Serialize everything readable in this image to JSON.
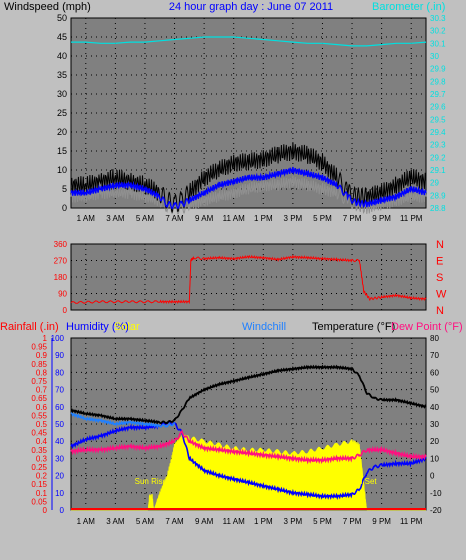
{
  "colors": {
    "background": "#c0c0c0",
    "plot_bg": "#808080",
    "grid": "#000000",
    "wind_gust": "#000000",
    "wind_avg": "#0000ff",
    "wind_min": "#909090",
    "barometer": "#00e0e0",
    "direction": "#ff0000",
    "rain": "#ff0000",
    "humidity": "#0000ff",
    "solar": "#ffff00",
    "windchill": "#2080ff",
    "temperature": "#000000",
    "dewpoint": "#ff1080",
    "sun_label": "#ffff00"
  },
  "chart_data": [
    {
      "type": "line",
      "title": "24 hour graph day : June 07 2011",
      "ylabel": "Windspeed (mph)",
      "y2label": "Barometer (.in)",
      "ylim": [
        0,
        50
      ],
      "y_ticks": [
        0,
        5,
        10,
        15,
        20,
        25,
        30,
        35,
        40,
        45,
        50
      ],
      "y2lim": [
        28.8,
        30.3
      ],
      "y2_ticks": [
        "28.8",
        "28.9",
        "29",
        "29.1",
        "29.2",
        "29.3",
        "29.4",
        "29.5",
        "29.6",
        "29.7",
        "29.8",
        "29.9",
        "30",
        "30.1",
        "30.2",
        "30.3"
      ],
      "x_ticks": [
        "1 AM",
        "3 AM",
        "5 AM",
        "7 AM",
        "9 AM",
        "11 AM",
        "1 PM",
        "3 PM",
        "5 PM",
        "7 PM",
        "9 PM",
        "11 PM"
      ],
      "x_tick_hours": [
        1,
        3,
        5,
        7,
        9,
        11,
        13,
        15,
        17,
        19,
        21,
        23
      ],
      "grid": true,
      "series": [
        {
          "name": "gust",
          "axis": "y",
          "x": [
            0,
            1,
            2,
            3,
            4,
            5,
            6,
            6.5,
            7,
            7.5,
            8,
            9,
            10,
            11,
            12,
            13,
            14,
            15,
            16,
            17,
            18,
            18.7,
            19.2,
            20,
            21,
            22,
            23,
            24
          ],
          "values": [
            6,
            6,
            7,
            8,
            7,
            6,
            4,
            2,
            1,
            2,
            4,
            8,
            10,
            12,
            12,
            13,
            14,
            15,
            14,
            12,
            8,
            4,
            3,
            3,
            4,
            6,
            8,
            7
          ]
        },
        {
          "name": "average",
          "axis": "y",
          "x": [
            0,
            1,
            2,
            3,
            4,
            5,
            6,
            6.5,
            7,
            7.5,
            8,
            9,
            10,
            11,
            12,
            13,
            14,
            15,
            16,
            17,
            18,
            18.7,
            19.2,
            20,
            21,
            22,
            23,
            24
          ],
          "values": [
            4,
            4,
            5,
            6,
            6,
            5,
            3,
            1,
            0.5,
            1,
            2,
            4,
            6,
            7,
            8,
            8,
            9,
            10,
            9,
            8,
            6,
            3,
            1.5,
            1,
            2,
            3,
            5,
            4
          ]
        },
        {
          "name": "minimum",
          "axis": "y",
          "x": [
            0,
            1,
            2,
            3,
            4,
            5,
            6,
            6.5,
            7,
            7.5,
            8,
            9,
            10,
            11,
            12,
            13,
            14,
            15,
            16,
            17,
            18,
            18.7,
            19.2,
            20,
            21,
            22,
            23,
            24
          ],
          "values": [
            3,
            3,
            4,
            4,
            4,
            3,
            2,
            0.5,
            0,
            0,
            1,
            2,
            3,
            4,
            5,
            6,
            6,
            7,
            6,
            5,
            4,
            2,
            1,
            0,
            1,
            2,
            3,
            3
          ]
        },
        {
          "name": "Barometer (.in)",
          "axis": "y2",
          "x": [
            0,
            1,
            2,
            3,
            4,
            5,
            6,
            7,
            8,
            9,
            10,
            11,
            12,
            13,
            14,
            15,
            16,
            17,
            18,
            19,
            20,
            21,
            22,
            23,
            24
          ],
          "values": [
            30.11,
            30.11,
            30.1,
            30.1,
            30.11,
            30.11,
            30.12,
            30.13,
            30.14,
            30.15,
            30.15,
            30.15,
            30.14,
            30.13,
            30.12,
            30.11,
            30.1,
            30.1,
            30.09,
            30.08,
            30.08,
            30.09,
            30.1,
            30.1,
            30.11
          ]
        }
      ]
    },
    {
      "type": "line",
      "title": "",
      "y_ticks": [
        0,
        90,
        180,
        270,
        360
      ],
      "ylim": [
        0,
        360
      ],
      "y2_ticks": [
        "N",
        "E",
        "S",
        "W",
        "N"
      ],
      "grid": true,
      "series": [
        {
          "name": "direction",
          "x": [
            0,
            2,
            4,
            6,
            7,
            8,
            8.1,
            8.3,
            9,
            10,
            11,
            12,
            13,
            14,
            15,
            16,
            17,
            18,
            19,
            19.5,
            19.8,
            20.2,
            21,
            22,
            23,
            24
          ],
          "values": [
            40,
            45,
            45,
            45,
            45,
            45,
            270,
            285,
            280,
            285,
            280,
            290,
            285,
            275,
            290,
            285,
            280,
            275,
            270,
            270,
            100,
            60,
            70,
            80,
            65,
            60
          ]
        }
      ]
    },
    {
      "type": "line",
      "title": "",
      "ylabel_labels": [
        "Rainfall (.in)",
        "Humidity (%)",
        "Solar",
        "Windchill",
        "Temperature (°F)",
        "Dew Point (°F)"
      ],
      "ylim": [
        0,
        1
      ],
      "y_ticks": [
        "0",
        "0.05",
        "0.1",
        "0.15",
        "0.2",
        "0.25",
        "0.3",
        "0.35",
        "0.4",
        "0.45",
        "0.5",
        "0.55",
        "0.6",
        "0.65",
        "0.7",
        "0.75",
        "0.8",
        "0.85",
        "0.9",
        "0.95",
        "1"
      ],
      "humidity_ticks": [
        0,
        10,
        20,
        30,
        40,
        50,
        60,
        70,
        80,
        90,
        100
      ],
      "y2lim": [
        -20,
        80
      ],
      "y2_ticks": [
        -20,
        -10,
        0,
        10,
        20,
        30,
        40,
        50,
        60,
        70,
        80
      ],
      "x_ticks": [
        "1 AM",
        "3 AM",
        "5 AM",
        "7 AM",
        "9 AM",
        "11 AM",
        "1 PM",
        "3 PM",
        "5 PM",
        "7 PM",
        "9 PM",
        "11 PM"
      ],
      "x_tick_hours": [
        1,
        3,
        5,
        7,
        9,
        11,
        13,
        15,
        17,
        19,
        21,
        23
      ],
      "annotations": [
        "Sun Rise",
        "Sun Set"
      ],
      "annotation_hours": [
        5.4,
        19.7
      ],
      "grid": true,
      "series": [
        {
          "name": "Temperature (°F)",
          "axis": "y2",
          "x": [
            0,
            1,
            2,
            3,
            4,
            5,
            6,
            6.5,
            7,
            7.5,
            8,
            9,
            10,
            11,
            12,
            13,
            14,
            15,
            16,
            17,
            18,
            19,
            19.5,
            20,
            20.5,
            21,
            22,
            23,
            24
          ],
          "values": [
            38,
            36,
            35,
            33,
            33,
            32,
            31,
            31,
            32,
            38,
            45,
            50,
            53,
            55,
            57,
            59,
            61,
            62,
            63,
            63,
            63,
            62,
            58,
            48,
            45,
            44,
            44,
            42,
            40
          ]
        },
        {
          "name": "Windchill",
          "axis": "y2",
          "x": [
            0,
            1,
            2,
            3,
            4,
            5,
            6,
            6.5,
            7
          ],
          "values": [
            36,
            33,
            32,
            30,
            31,
            30,
            29,
            29,
            30
          ]
        },
        {
          "name": "Dew Point (°F)",
          "axis": "y2",
          "x": [
            0,
            1,
            2,
            3,
            4,
            5,
            6,
            7,
            7.5,
            8,
            9,
            10,
            11,
            12,
            13,
            14,
            15,
            16,
            17,
            18,
            19,
            19.5,
            20,
            21,
            22,
            23,
            24
          ],
          "values": [
            14,
            15,
            15,
            16,
            17,
            16,
            17,
            20,
            25,
            20,
            16,
            15,
            14,
            13,
            12,
            11,
            10,
            9,
            9,
            10,
            10,
            12,
            15,
            15,
            13,
            11,
            11
          ]
        },
        {
          "name": "Humidity (%)",
          "axis": "humidity",
          "x": [
            0,
            1,
            2,
            3,
            4,
            5,
            6,
            6.5,
            7,
            7.5,
            8,
            9,
            10,
            11,
            12,
            13,
            14,
            15,
            16,
            17,
            18,
            19,
            19.5,
            20,
            20.5,
            21,
            22,
            23,
            24
          ],
          "values": [
            37,
            41,
            43,
            46,
            48,
            48,
            49,
            51,
            50,
            45,
            30,
            23,
            20,
            18,
            16,
            14,
            12,
            10,
            9,
            8,
            8,
            9,
            12,
            22,
            25,
            26,
            27,
            27,
            30
          ]
        },
        {
          "name": "Solar",
          "axis": "solar_fraction",
          "x": [
            0,
            5.2,
            5.3,
            5.5,
            5.6,
            6,
            6.5,
            6.8,
            7,
            7.5,
            8,
            9,
            10,
            11,
            12,
            13,
            14,
            15,
            16,
            17,
            18,
            19,
            19.5,
            19.8,
            20,
            24
          ],
          "values": [
            0,
            0,
            0.08,
            0.08,
            0,
            0.1,
            0.2,
            0.3,
            0.38,
            0.43,
            0.42,
            0.4,
            0.38,
            0.36,
            0.35,
            0.35,
            0.34,
            0.33,
            0.34,
            0.36,
            0.38,
            0.4,
            0.38,
            0.15,
            0,
            0
          ]
        },
        {
          "name": "Rainfall (.in)",
          "axis": "y",
          "x": [
            0,
            24
          ],
          "values": [
            0,
            0
          ]
        }
      ]
    }
  ]
}
